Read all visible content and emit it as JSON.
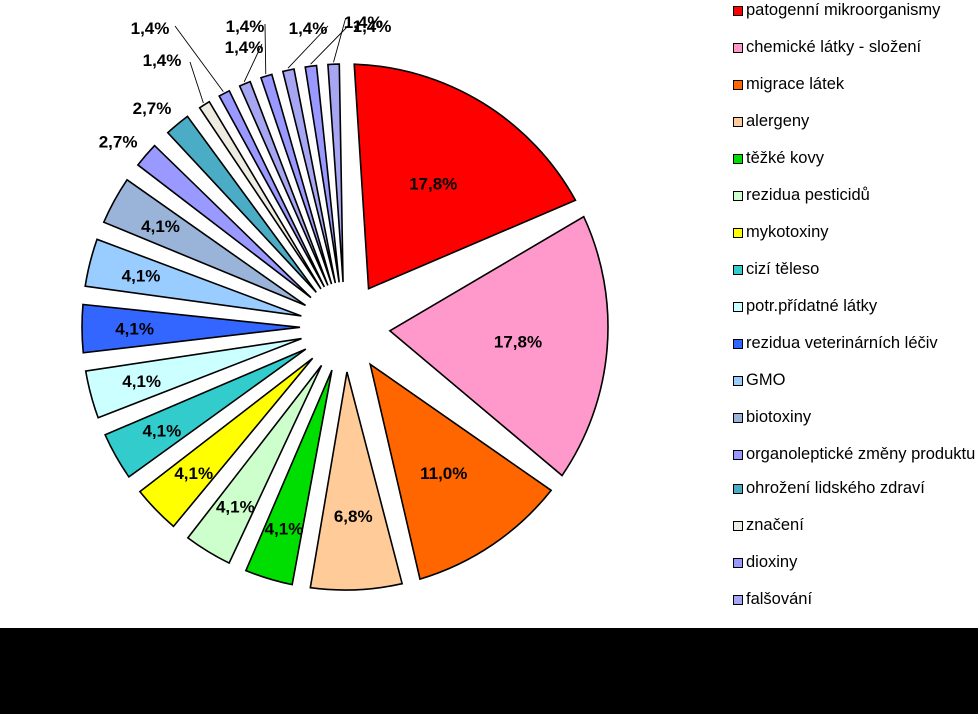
{
  "chart_data": {
    "type": "pie",
    "title": "",
    "exploded": true,
    "legend_position": "right",
    "slices": [
      {
        "label": "patogenní mikroorganismy",
        "value": 17.8,
        "value_label": "17,8%",
        "color": "#FF0000"
      },
      {
        "label": "chemické látky - složení",
        "value": 17.8,
        "value_label": "17,8%",
        "color": "#FF99CC"
      },
      {
        "label": "migrace látek",
        "value": 11.0,
        "value_label": "11,0%",
        "color": "#FF6600"
      },
      {
        "label": "alergeny",
        "value": 6.8,
        "value_label": "6,8%",
        "color": "#FFCC99"
      },
      {
        "label": "těžké kovy",
        "value": 4.1,
        "value_label": "4,1%",
        "color": "#00DD00"
      },
      {
        "label": "rezidua pesticidů",
        "value": 4.1,
        "value_label": "4,1%",
        "color": "#CCFFCC"
      },
      {
        "label": "mykotoxiny",
        "value": 4.1,
        "value_label": "4,1%",
        "color": "#FFFF00"
      },
      {
        "label": "cizí těleso",
        "value": 4.1,
        "value_label": "4,1%",
        "color": "#33CCCC"
      },
      {
        "label": "potr.přídatné látky",
        "value": 4.1,
        "value_label": "4,1%",
        "color": "#CCFFFF"
      },
      {
        "label": "rezidua veterinárních léčiv",
        "value": 4.1,
        "value_label": "4,1%",
        "color": "#3366FF"
      },
      {
        "label": "GMO",
        "value": 4.1,
        "value_label": "4,1%",
        "color": "#99CCFF"
      },
      {
        "label": "biotoxiny",
        "value": 4.1,
        "value_label": "4,1%",
        "color": "#99B3D9"
      },
      {
        "label": "organoleptické změny produktu",
        "value": 2.7,
        "value_label": "2,7%",
        "color": "#9999FF"
      },
      {
        "label": "ohrožení lidského zdraví",
        "value": 2.7,
        "value_label": "2,7%",
        "color": "#4BACC6"
      },
      {
        "label": "značení",
        "value": 1.4,
        "value_label": "1,4%",
        "color": "#EEECE1"
      },
      {
        "label": "dioxiny",
        "value": 1.4,
        "value_label": "1,4%",
        "color": "#9999FF"
      },
      {
        "label": "falšování",
        "value": 1.4,
        "value_label": "1,4%",
        "color": "#A6A6F2"
      },
      {
        "label": "",
        "value": 1.4,
        "value_label": "1,4%",
        "color": "#9999FF"
      },
      {
        "label": "",
        "value": 1.4,
        "value_label": "1,4%",
        "color": "#A6A6F2"
      },
      {
        "label": "",
        "value": 1.4,
        "value_label": "1,4%",
        "color": "#9999FF"
      },
      {
        "label": "",
        "value": 1.4,
        "value_label": "1,4%",
        "color": "#A6A6F2"
      }
    ]
  }
}
